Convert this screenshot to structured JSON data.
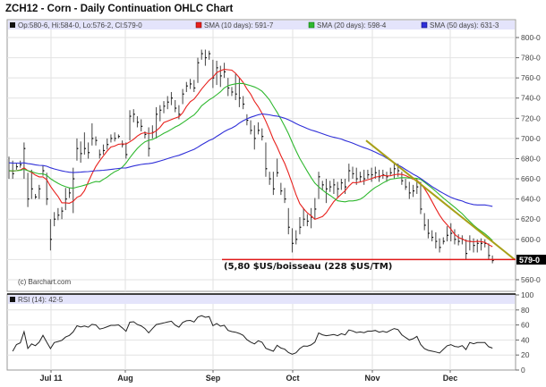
{
  "title": "ZCH12 - Corn - Daily Continuation OHLC Chart",
  "chart_data": [
    {
      "type": "ohlc",
      "legend": {
        "ohlc": "Op:580-6, Hi:584-0, Lo:576-2, Cl:579-0",
        "sma10": "SMA (10 days): 591-7",
        "sma20": "SMA (20 days): 598-4",
        "sma50": "SMA (50 days): 631-3"
      },
      "colors": {
        "bars": "#222222",
        "sma10": "#e8201c",
        "sma20": "#2fb82f",
        "sma50": "#2f2fd8",
        "trendline": "#a8a018",
        "support": "#e01818",
        "legend_bg": "#e4e4fb"
      },
      "ylim": [
        550,
        810
      ],
      "y_ticks": [
        "800-0",
        "780-0",
        "760-0",
        "740-0",
        "720-0",
        "700-0",
        "680-0",
        "660-0",
        "640-0",
        "620-0",
        "600-0",
        "560-0"
      ],
      "y_tick_values": [
        800,
        780,
        760,
        740,
        720,
        700,
        680,
        660,
        640,
        620,
        600,
        560
      ],
      "last_price_label": "579-0",
      "last_price": 579,
      "x_ticks": [
        "Jul 11",
        "Aug",
        "Sep",
        "Oct",
        "Nov",
        "Dec"
      ],
      "grid": true,
      "bars_hlc": [
        [
          682,
          660,
          668
        ],
        [
          678,
          660,
          665
        ],
        [
          675,
          669,
          672
        ],
        [
          678,
          671,
          674
        ],
        [
          696,
          660,
          690
        ],
        [
          666,
          632,
          640
        ],
        [
          669,
          640,
          650
        ],
        [
          645,
          640,
          642
        ],
        [
          654,
          640,
          650
        ],
        [
          673,
          663,
          668
        ],
        [
          666,
          634,
          640
        ],
        [
          620,
          589,
          600
        ],
        [
          627,
          613,
          620
        ],
        [
          631,
          619,
          624
        ],
        [
          632,
          620,
          628
        ],
        [
          651,
          629,
          640
        ],
        [
          651,
          641,
          646
        ],
        [
          671,
          626,
          660
        ],
        [
          700,
          678,
          690
        ],
        [
          697,
          676,
          685
        ],
        [
          706,
          684,
          690
        ],
        [
          696,
          680,
          686
        ],
        [
          715,
          693,
          700
        ],
        [
          702,
          693,
          698
        ],
        [
          689,
          680,
          684
        ],
        [
          694,
          684,
          688
        ],
        [
          700,
          689,
          694
        ],
        [
          704,
          696,
          700
        ],
        [
          706,
          697,
          700
        ],
        [
          704,
          700,
          702
        ],
        [
          698,
          691,
          694
        ],
        [
          696,
          680,
          684
        ],
        [
          728,
          698,
          722
        ],
        [
          729,
          716,
          724
        ],
        [
          722,
          711,
          716
        ],
        [
          719,
          707,
          712
        ],
        [
          707,
          700,
          704
        ],
        [
          711,
          682,
          690
        ],
        [
          713,
          700,
          706
        ],
        [
          731,
          700,
          724
        ],
        [
          733,
          717,
          728
        ],
        [
          737,
          725,
          732
        ],
        [
          742,
          729,
          736
        ],
        [
          746,
          733,
          740
        ],
        [
          738,
          726,
          730
        ],
        [
          733,
          719,
          724
        ],
        [
          749,
          734,
          744
        ],
        [
          756,
          746,
          752
        ],
        [
          759,
          749,
          754
        ],
        [
          758,
          746,
          750
        ],
        [
          780,
          755,
          775
        ],
        [
          788,
          778,
          784
        ],
        [
          788,
          772,
          780
        ],
        [
          787,
          778,
          784
        ],
        [
          778,
          750,
          760
        ],
        [
          777,
          753,
          770
        ],
        [
          772,
          751,
          762
        ],
        [
          775,
          760,
          766
        ],
        [
          760,
          742,
          750
        ],
        [
          751,
          742,
          746
        ],
        [
          764,
          738,
          744
        ],
        [
          760,
          731,
          740
        ],
        [
          742,
          729,
          734
        ],
        [
          724,
          713,
          718
        ],
        [
          718,
          704,
          708
        ],
        [
          713,
          689,
          700
        ],
        [
          716,
          704,
          708
        ],
        [
          710,
          698,
          702
        ],
        [
          696,
          662,
          670
        ],
        [
          667,
          654,
          660
        ],
        [
          667,
          644,
          650
        ],
        [
          680,
          662,
          666
        ],
        [
          656,
          644,
          648
        ],
        [
          651,
          636,
          640
        ],
        [
          631,
          605,
          612
        ],
        [
          611,
          587,
          596
        ],
        [
          609,
          595,
          600
        ],
        [
          622,
          605,
          612
        ],
        [
          631,
          613,
          620
        ],
        [
          625,
          613,
          618
        ],
        [
          631,
          611,
          622
        ],
        [
          641,
          620,
          630
        ],
        [
          667,
          640,
          662
        ],
        [
          658,
          649,
          654
        ],
        [
          660,
          636,
          650
        ],
        [
          658,
          647,
          652
        ],
        [
          660,
          645,
          654
        ],
        [
          657,
          642,
          650
        ],
        [
          660,
          649,
          656
        ],
        [
          660,
          645,
          652
        ],
        [
          675,
          657,
          668
        ],
        [
          672,
          660,
          665
        ],
        [
          671,
          654,
          660
        ],
        [
          667,
          657,
          662
        ],
        [
          669,
          654,
          660
        ],
        [
          669,
          660,
          664
        ],
        [
          671,
          657,
          664
        ],
        [
          672,
          660,
          666
        ],
        [
          669,
          657,
          662
        ],
        [
          669,
          660,
          664
        ],
        [
          667,
          657,
          662
        ],
        [
          671,
          663,
          666
        ],
        [
          675,
          660,
          670
        ],
        [
          675,
          662,
          668
        ],
        [
          667,
          654,
          658
        ],
        [
          660,
          649,
          652
        ],
        [
          657,
          640,
          646
        ],
        [
          654,
          642,
          648
        ],
        [
          660,
          645,
          652
        ],
        [
          657,
          625,
          630
        ],
        [
          626,
          609,
          614
        ],
        [
          620,
          601,
          606
        ],
        [
          609,
          598,
          602
        ],
        [
          607,
          591,
          598
        ],
        [
          601,
          587,
          592
        ],
        [
          602,
          595,
          598
        ],
        [
          613,
          598,
          604
        ],
        [
          616,
          598,
          606
        ],
        [
          610,
          595,
          600
        ],
        [
          605,
          594,
          598
        ],
        [
          604,
          595,
          600
        ],
        [
          600,
          580,
          586
        ],
        [
          604,
          589,
          598
        ],
        [
          601,
          587,
          594
        ],
        [
          600,
          587,
          596
        ],
        [
          601,
          589,
          596
        ],
        [
          600,
          592,
          596
        ],
        [
          596,
          580,
          584
        ],
        [
          584,
          576.25,
          579
        ]
      ],
      "trendline": {
        "from": 698,
        "to": 580
      },
      "support": {
        "value": 580
      },
      "annotation": "(5,80 $US/boisseau (228 $US/TM)",
      "credit": "(c) Barchart.com"
    },
    {
      "type": "line",
      "legend": "RSI (14): 42-5",
      "ylim": [
        0,
        100
      ],
      "y_ticks": [
        "100",
        "80",
        "60",
        "40",
        "20",
        "0"
      ],
      "y_tick_values": [
        100,
        80,
        60,
        40,
        20,
        0
      ],
      "period": 14
    }
  ]
}
